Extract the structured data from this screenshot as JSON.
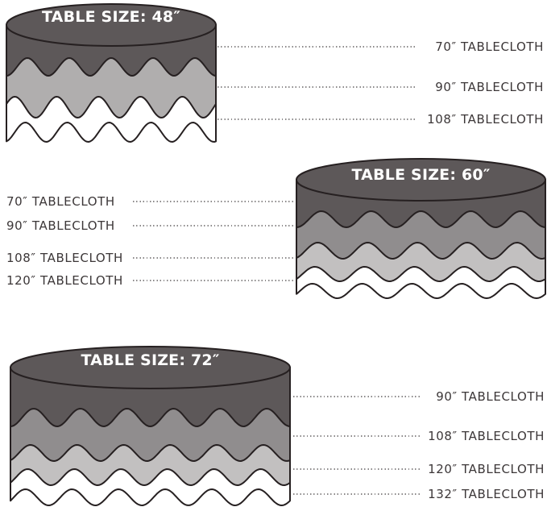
{
  "diagram": {
    "description": "Round tablecloth size guide",
    "tables": [
      {
        "id": "48",
        "title": "TABLE SIZE: 48″",
        "table_size": "48″",
        "label_side": "right",
        "tablecloths": [
          "70″ TABLECLOTH",
          "90″ TABLECLOTH",
          "108″ TABLECLOTH"
        ],
        "layer_colors": [
          "#5d5859",
          "#b0aeae",
          "#ffffff"
        ]
      },
      {
        "id": "60",
        "title": "TABLE SIZE: 60″",
        "table_size": "60″",
        "label_side": "left",
        "tablecloths": [
          "70″ TABLECLOTH",
          "90″ TABLECLOTH",
          "108″ TABLECLOTH",
          "120″ TABLECLOTH"
        ],
        "layer_colors": [
          "#5d5859",
          "#908d8e",
          "#c2c0c0",
          "#ffffff"
        ]
      },
      {
        "id": "72",
        "title": "TABLE SIZE: 72″",
        "table_size": "72″",
        "label_side": "right",
        "tablecloths": [
          "90″ TABLECLOTH",
          "108″ TABLECLOTH",
          "120″ TABLECLOTH",
          "132″ TABLECLOTH"
        ],
        "layer_colors": [
          "#5d5859",
          "#908d8e",
          "#c2c0c0",
          "#ffffff"
        ]
      }
    ],
    "colors": {
      "background": "#ffffff",
      "table_top": "#5d5859",
      "outline": "#262021",
      "title_text": "#ffffff",
      "label_text": "#3c3738",
      "connector": "#8b8889"
    }
  }
}
